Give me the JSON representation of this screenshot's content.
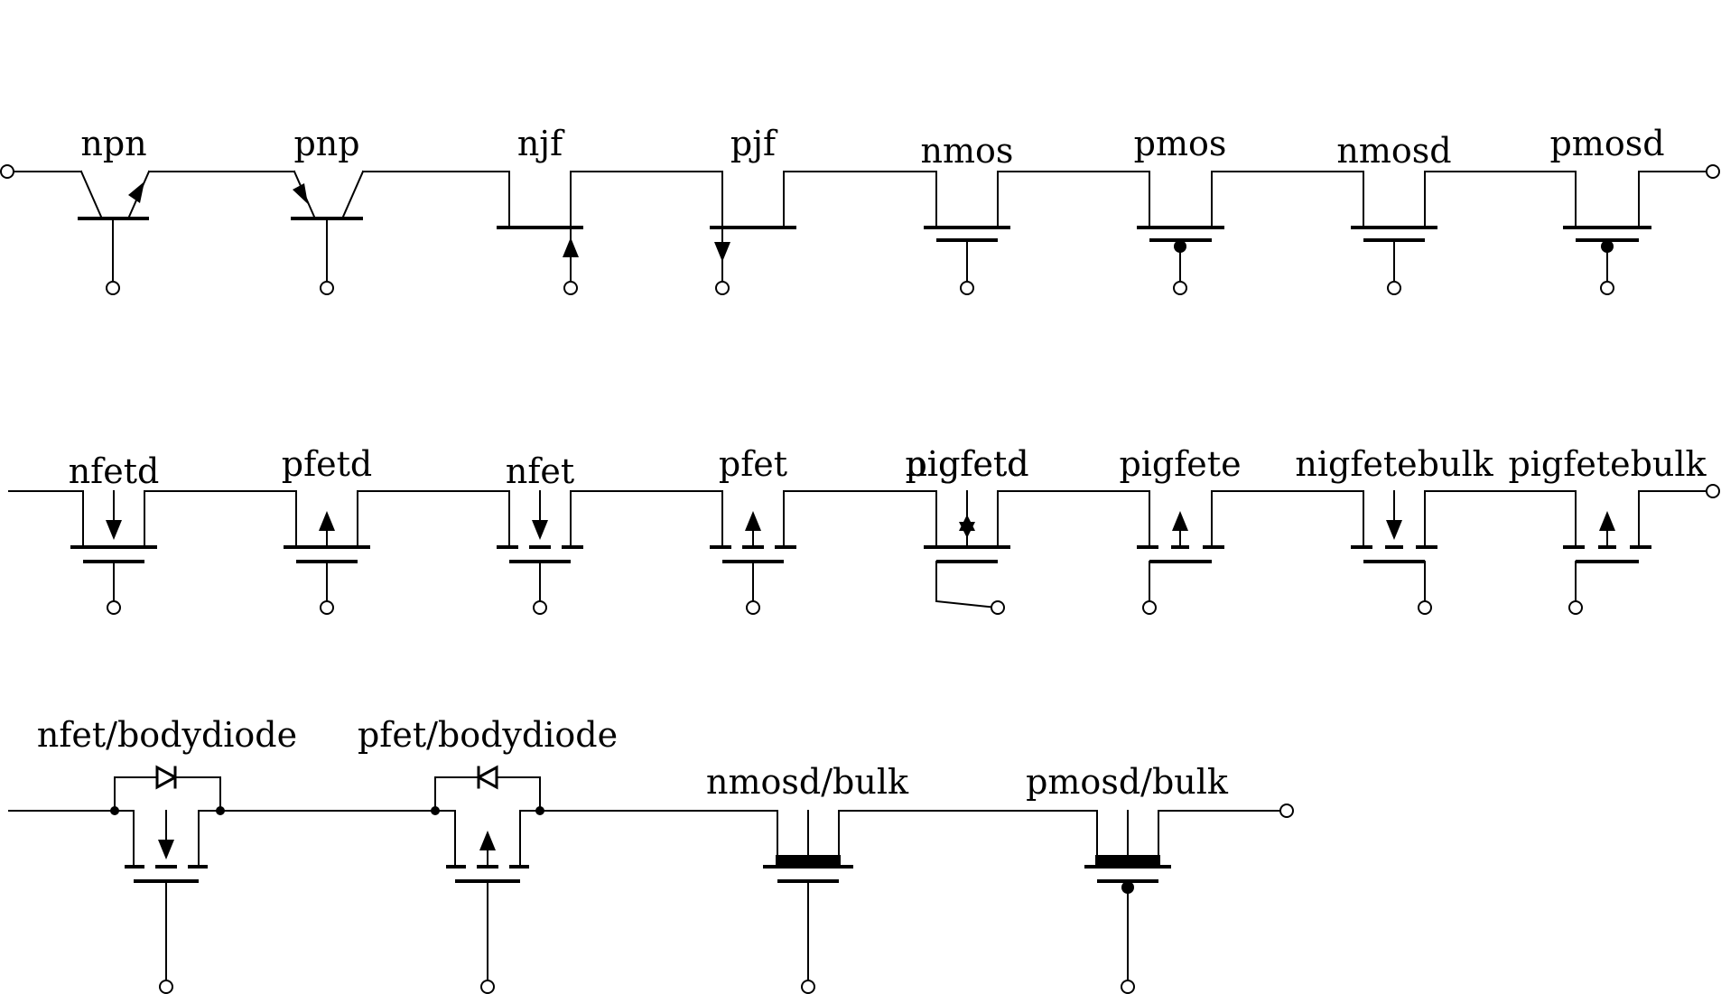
{
  "diagram": {
    "row1": [
      "npn",
      "pnp",
      "njf",
      "pjf",
      "nmos",
      "pmos",
      "nmosd",
      "pmosd"
    ],
    "row2": [
      "nfetd",
      "pfetd",
      "nfet",
      "pfet",
      "nigfetd",
      "pigfete",
      "nigfetebulk",
      "pigfetebulk"
    ],
    "row2_overlap": "pigfetd",
    "row3": [
      "nfet/bodydiode",
      "pfet/bodydiode",
      "nmosd/bulk",
      "pmosd/bulk"
    ]
  }
}
